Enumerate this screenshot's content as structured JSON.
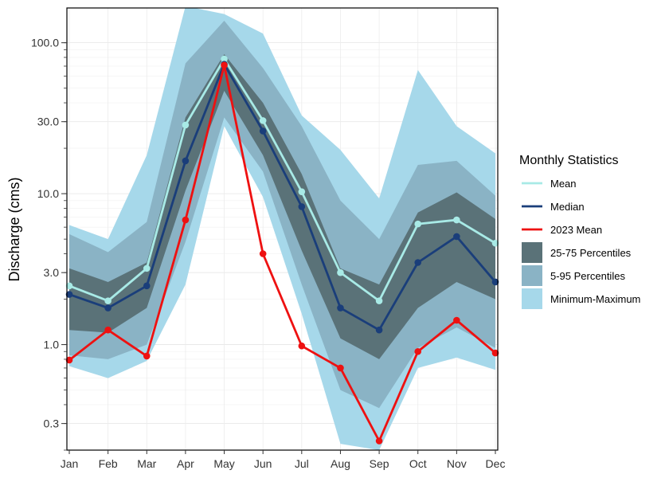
{
  "chart_data": {
    "type": "line",
    "title": "",
    "xlabel": "",
    "ylabel": "Discharge (cms)",
    "y_scale": "log10",
    "ylim": [
      0.2,
      170
    ],
    "y_ticks": [
      0.3,
      1.0,
      3.0,
      10.0,
      30.0,
      100.0
    ],
    "y_tick_labels": [
      "0.3",
      "1.0",
      "3.0",
      "10.0",
      "30.0",
      "100.0"
    ],
    "categories": [
      "Jan",
      "Feb",
      "Mar",
      "Apr",
      "May",
      "Jun",
      "Jul",
      "Aug",
      "Sep",
      "Oct",
      "Nov",
      "Dec"
    ],
    "grid": true,
    "legend_position": "right",
    "legend_title": "Monthly Statistics",
    "bands": [
      {
        "name": "Minimum-Maximum",
        "color": "#a6d8ea",
        "lower": [
          0.72,
          0.6,
          0.78,
          2.5,
          28,
          9.5,
          1.6,
          0.22,
          0.2,
          0.7,
          0.82,
          0.68
        ],
        "upper": [
          6.2,
          5.0,
          18,
          175,
          155,
          115,
          33,
          19.5,
          9.3,
          66,
          28,
          18.5
        ]
      },
      {
        "name": "5-95 Percentiles",
        "color": "#8ab3c5",
        "lower": [
          0.85,
          0.8,
          1.0,
          4.8,
          32,
          14,
          2.5,
          0.5,
          0.38,
          0.95,
          1.3,
          0.95
        ],
        "upper": [
          5.4,
          4.1,
          6.5,
          73,
          140,
          68,
          28,
          9.0,
          5.0,
          15.5,
          16.5,
          9.7
        ]
      },
      {
        "name": "25-75 Percentiles",
        "color": "#5a7278",
        "lower": [
          1.25,
          1.2,
          1.75,
          10.5,
          48,
          18,
          4.2,
          1.1,
          0.8,
          1.75,
          2.6,
          2.0
        ],
        "upper": [
          3.2,
          2.6,
          3.5,
          32,
          84,
          40,
          13.5,
          3.2,
          2.5,
          7.5,
          10.2,
          6.8
        ]
      }
    ],
    "series": [
      {
        "name": "Mean",
        "color": "#a8eae6",
        "values": [
          2.45,
          1.95,
          3.2,
          28.5,
          78,
          30.5,
          10.3,
          3.0,
          1.95,
          6.3,
          6.7,
          4.7
        ]
      },
      {
        "name": "Median",
        "color": "#1a3e7a",
        "values": [
          2.15,
          1.75,
          2.45,
          16.5,
          72,
          26,
          8.2,
          1.75,
          1.25,
          3.5,
          5.2,
          2.6
        ]
      },
      {
        "name": "2023 Mean",
        "color": "#ee1111",
        "values": [
          0.79,
          1.25,
          0.84,
          6.7,
          71,
          4.0,
          0.98,
          0.7,
          0.23,
          0.9,
          1.45,
          0.88
        ]
      }
    ],
    "legend_entries": [
      {
        "label": "Mean",
        "kind": "line",
        "color": "#a8eae6"
      },
      {
        "label": "Median",
        "kind": "line",
        "color": "#1a3e7a"
      },
      {
        "label": "2023 Mean",
        "kind": "line",
        "color": "#ee1111"
      },
      {
        "label": "25-75 Percentiles",
        "kind": "fill",
        "color": "#5a7278"
      },
      {
        "label": "5-95 Percentiles",
        "kind": "fill",
        "color": "#8ab3c5"
      },
      {
        "label": "Minimum-Maximum",
        "kind": "fill",
        "color": "#a6d8ea"
      }
    ]
  }
}
